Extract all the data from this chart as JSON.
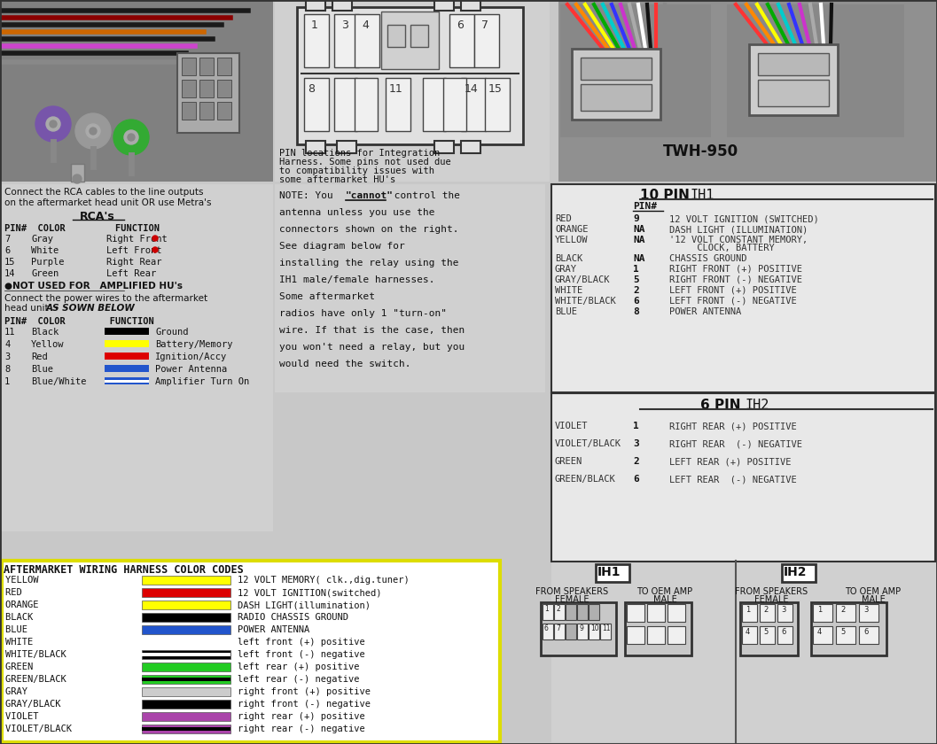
{
  "bg_color": "#c8c8c8",
  "aftermarket_title": "AFTERMARKET WIRING HARNESS COLOR CODES",
  "color_codes": [
    {
      "name": "YELLOW",
      "bar_color": "#ffff00",
      "bar2": null,
      "desc": "12 VOLT MEMORY( clk.,dig.tuner)"
    },
    {
      "name": "RED",
      "bar_color": "#dd0000",
      "bar2": null,
      "desc": "12 VOLT IGNITION(switched)"
    },
    {
      "name": "ORANGE",
      "bar_color": "#ffff00",
      "bar2": null,
      "desc": "DASH LIGHT(illumination)"
    },
    {
      "name": "BLACK",
      "bar_color": "#000000",
      "bar2": null,
      "desc": "RADIO CHASSIS GROUND"
    },
    {
      "name": "BLUE",
      "bar_color": "#2255cc",
      "bar2": null,
      "desc": "POWER ANTENNA"
    },
    {
      "name": "WHITE",
      "bar_color": null,
      "bar2": null,
      "desc": "left front (+) positive"
    },
    {
      "name": "WHITE/BLACK",
      "bar_color": "#000000",
      "bar2": "#ffffff",
      "desc": "left front (-) negative"
    },
    {
      "name": "GREEN",
      "bar_color": "#22cc22",
      "bar2": null,
      "desc": "left rear (+) positive"
    },
    {
      "name": "GREEN/BLACK",
      "bar_color": "#22cc22",
      "bar2": "#000000",
      "desc": "left rear (-) negative"
    },
    {
      "name": "GRAY",
      "bar_color": "#cccccc",
      "bar2": null,
      "desc": "right front (+) positive"
    },
    {
      "name": "GRAY/BLACK",
      "bar_color": "#000000",
      "bar2": null,
      "desc": "right front (-) negative"
    },
    {
      "name": "VIOLET",
      "bar_color": "#aa44aa",
      "bar2": null,
      "desc": "right rear (+) positive"
    },
    {
      "name": "VIOLET/BLACK",
      "bar_color": "#aa44aa",
      "bar2": "#000000",
      "desc": "right rear (-) negative"
    }
  ],
  "rca_entries": [
    {
      "pin": "7",
      "color": "Gray",
      "func": "Right Front"
    },
    {
      "pin": "6",
      "color": "White",
      "func": "Left Front "
    },
    {
      "pin": "15",
      "color": "Purple",
      "func": "Right Rear"
    },
    {
      "pin": "14",
      "color": "Green",
      "func": "Left Rear"
    }
  ],
  "power_entries": [
    {
      "pin": "11",
      "color": "Black",
      "bar_color": "#000000",
      "bar2": null,
      "func": "Ground"
    },
    {
      "pin": "4",
      "color": "Yellow",
      "bar_color": "#ffff00",
      "bar2": null,
      "func": "Battery/Memory"
    },
    {
      "pin": "3",
      "color": "Red",
      "bar_color": "#dd0000",
      "bar2": null,
      "func": "Ignition/Accy"
    },
    {
      "pin": "8",
      "color": "Blue",
      "bar_color": "#2255cc",
      "bar2": null,
      "func": "Power Antenna"
    },
    {
      "pin": "1",
      "color": "Blue/White",
      "bar_color": "#2255cc",
      "bar2": "#ffffff",
      "func": "Amplifier Turn On"
    }
  ],
  "antenna_note": [
    "NOTE: You \"cannot\" control the",
    "antenna unless you use the",
    "connectors shown on the right.",
    "See diagram below for",
    "installing the relay using the",
    "IH1 male/female harnesses.",
    "Some aftermarket",
    "radios have only 1 \"turn-on\"",
    "wire. If that is the case, then",
    "you won't need a relay, but you",
    "would need the switch."
  ],
  "pin_note": [
    "PIN locations for Integration",
    "Harness. Some pins not used due",
    "to compatibility issues with",
    "some aftermarket HU's"
  ],
  "twh_title": "TWH-950",
  "pin10_entries": [
    {
      "color": "RED",
      "pin": "9",
      "desc": "12 VOLT IGNITION (SWITCHED)"
    },
    {
      "color": "ORANGE",
      "pin": "NA",
      "desc": "DASH LIGHT (ILLUMINATION)"
    },
    {
      "color": "YELLOW",
      "pin": "NA",
      "desc": "'12 VOLT CONSTANT MEMORY,"
    },
    {
      "color": "",
      "pin": "",
      "desc": "     CLOCK, BATTERY"
    },
    {
      "color": "BLACK",
      "pin": "NA",
      "desc": "CHASSIS GROUND"
    },
    {
      "color": "GRAY",
      "pin": "1",
      "desc": "RIGHT FRONT (+) POSITIVE"
    },
    {
      "color": "GRAY/BLACK",
      "pin": "5",
      "desc": "RIGHT FRONT (-) NEGATIVE"
    },
    {
      "color": "WHITE",
      "pin": "2",
      "desc": "LEFT FRONT (+) POSITIVE"
    },
    {
      "color": "WHITE/BLACK",
      "pin": "6",
      "desc": "LEFT FRONT (-) NEGATIVE"
    },
    {
      "color": "BLUE",
      "pin": "8",
      "desc": "POWER ANTENNA"
    }
  ],
  "pin6_entries": [
    {
      "color": "VIOLET",
      "pin": "1",
      "desc": "RIGHT REAR (+) POSITIVE"
    },
    {
      "color": "VIOLET/BLACK",
      "pin": "3",
      "desc": "RIGHT REAR  (-) NEGATIVE"
    },
    {
      "color": "GREEN",
      "pin": "2",
      "desc": "LEFT REAR (+) POSITIVE"
    },
    {
      "color": "GREEN/BLACK",
      "pin": "6",
      "desc": "LEFT REAR  (-) NEGATIVE"
    }
  ]
}
